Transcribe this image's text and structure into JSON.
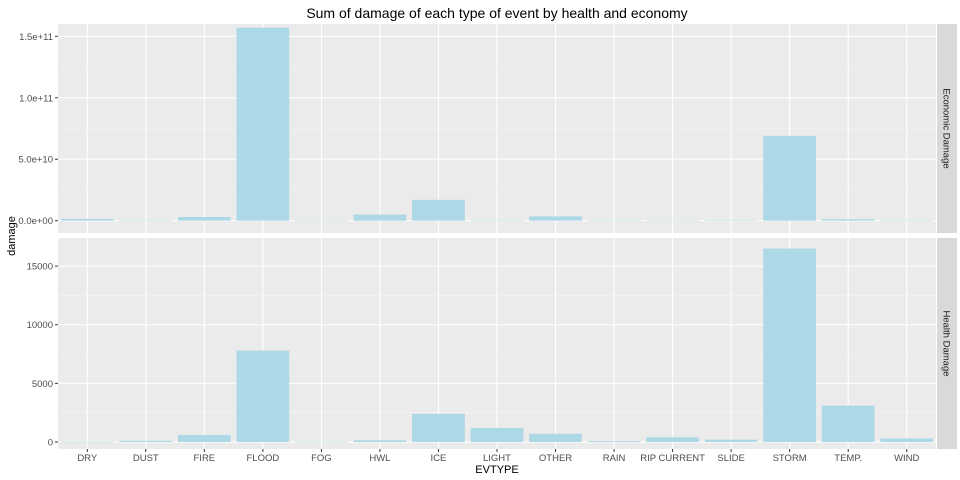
{
  "chart_data": {
    "type": "bar",
    "title": "Sum of damage of each type of event by health and economy",
    "xlabel": "EVTYPE",
    "ylabel": "damage",
    "grid": true,
    "bar_color": "#add8e6",
    "panel_background": "#ebebeb",
    "strip_background": "#d9d9d9",
    "categories": [
      "DRY",
      "DUST",
      "FIRE",
      "FLOOD",
      "FOG",
      "HWL",
      "ICE",
      "LIGHT",
      "OTHER",
      "RAIN",
      "RIP CURRENT",
      "SLIDE",
      "STORM",
      "TEMP.",
      "WIND"
    ],
    "panels": [
      {
        "strip": "Economic Damage",
        "ylim": [
          -10000000000.0,
          160000000000.0
        ],
        "yticks": [
          0,
          50000000000.0,
          100000000000.0,
          150000000000.0
        ],
        "ytick_labels": [
          "0.0e+00",
          "5.0e+10",
          "1.0e+11",
          "1.5e+11"
        ],
        "values": [
          1500000000.0,
          100000000.0,
          3000000000.0,
          157000000000.0,
          20000000.0,
          5000000000.0,
          17000000000.0,
          100000000.0,
          3500000000.0,
          50000000.0,
          10000000.0,
          300000000.0,
          69000000000.0,
          1200000000.0,
          100000000.0
        ]
      },
      {
        "strip": "Health Damage",
        "ylim": [
          -600,
          17400
        ],
        "yticks": [
          0,
          5000,
          10000,
          15000
        ],
        "ytick_labels": [
          "0",
          "5000",
          "10000",
          "15000"
        ],
        "values": [
          10,
          100,
          600,
          7800,
          20,
          150,
          2400,
          1200,
          700,
          80,
          400,
          200,
          16500,
          3100,
          300
        ]
      }
    ]
  }
}
